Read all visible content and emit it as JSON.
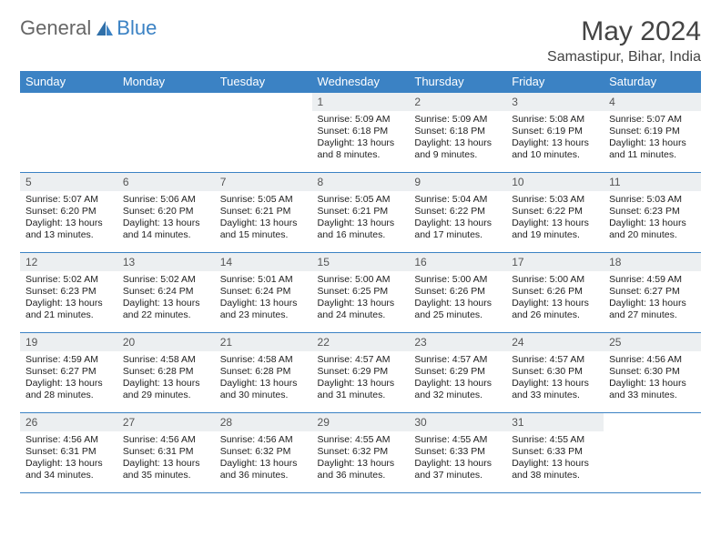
{
  "brand": {
    "part1": "General",
    "part2": "Blue"
  },
  "header": {
    "month_title": "May 2024",
    "location": "Samastipur, Bihar, India"
  },
  "colors": {
    "accent": "#3b82c4",
    "header_bg": "#3b82c4",
    "daynum_bg": "#eceff1"
  },
  "weekdays": [
    "Sunday",
    "Monday",
    "Tuesday",
    "Wednesday",
    "Thursday",
    "Friday",
    "Saturday"
  ],
  "weeks": [
    [
      null,
      null,
      null,
      {
        "n": "1",
        "sr": "5:09 AM",
        "ss": "6:18 PM",
        "dl": "13 hours and 8 minutes."
      },
      {
        "n": "2",
        "sr": "5:09 AM",
        "ss": "6:18 PM",
        "dl": "13 hours and 9 minutes."
      },
      {
        "n": "3",
        "sr": "5:08 AM",
        "ss": "6:19 PM",
        "dl": "13 hours and 10 minutes."
      },
      {
        "n": "4",
        "sr": "5:07 AM",
        "ss": "6:19 PM",
        "dl": "13 hours and 11 minutes."
      }
    ],
    [
      {
        "n": "5",
        "sr": "5:07 AM",
        "ss": "6:20 PM",
        "dl": "13 hours and 13 minutes."
      },
      {
        "n": "6",
        "sr": "5:06 AM",
        "ss": "6:20 PM",
        "dl": "13 hours and 14 minutes."
      },
      {
        "n": "7",
        "sr": "5:05 AM",
        "ss": "6:21 PM",
        "dl": "13 hours and 15 minutes."
      },
      {
        "n": "8",
        "sr": "5:05 AM",
        "ss": "6:21 PM",
        "dl": "13 hours and 16 minutes."
      },
      {
        "n": "9",
        "sr": "5:04 AM",
        "ss": "6:22 PM",
        "dl": "13 hours and 17 minutes."
      },
      {
        "n": "10",
        "sr": "5:03 AM",
        "ss": "6:22 PM",
        "dl": "13 hours and 19 minutes."
      },
      {
        "n": "11",
        "sr": "5:03 AM",
        "ss": "6:23 PM",
        "dl": "13 hours and 20 minutes."
      }
    ],
    [
      {
        "n": "12",
        "sr": "5:02 AM",
        "ss": "6:23 PM",
        "dl": "13 hours and 21 minutes."
      },
      {
        "n": "13",
        "sr": "5:02 AM",
        "ss": "6:24 PM",
        "dl": "13 hours and 22 minutes."
      },
      {
        "n": "14",
        "sr": "5:01 AM",
        "ss": "6:24 PM",
        "dl": "13 hours and 23 minutes."
      },
      {
        "n": "15",
        "sr": "5:00 AM",
        "ss": "6:25 PM",
        "dl": "13 hours and 24 minutes."
      },
      {
        "n": "16",
        "sr": "5:00 AM",
        "ss": "6:26 PM",
        "dl": "13 hours and 25 minutes."
      },
      {
        "n": "17",
        "sr": "5:00 AM",
        "ss": "6:26 PM",
        "dl": "13 hours and 26 minutes."
      },
      {
        "n": "18",
        "sr": "4:59 AM",
        "ss": "6:27 PM",
        "dl": "13 hours and 27 minutes."
      }
    ],
    [
      {
        "n": "19",
        "sr": "4:59 AM",
        "ss": "6:27 PM",
        "dl": "13 hours and 28 minutes."
      },
      {
        "n": "20",
        "sr": "4:58 AM",
        "ss": "6:28 PM",
        "dl": "13 hours and 29 minutes."
      },
      {
        "n": "21",
        "sr": "4:58 AM",
        "ss": "6:28 PM",
        "dl": "13 hours and 30 minutes."
      },
      {
        "n": "22",
        "sr": "4:57 AM",
        "ss": "6:29 PM",
        "dl": "13 hours and 31 minutes."
      },
      {
        "n": "23",
        "sr": "4:57 AM",
        "ss": "6:29 PM",
        "dl": "13 hours and 32 minutes."
      },
      {
        "n": "24",
        "sr": "4:57 AM",
        "ss": "6:30 PM",
        "dl": "13 hours and 33 minutes."
      },
      {
        "n": "25",
        "sr": "4:56 AM",
        "ss": "6:30 PM",
        "dl": "13 hours and 33 minutes."
      }
    ],
    [
      {
        "n": "26",
        "sr": "4:56 AM",
        "ss": "6:31 PM",
        "dl": "13 hours and 34 minutes."
      },
      {
        "n": "27",
        "sr": "4:56 AM",
        "ss": "6:31 PM",
        "dl": "13 hours and 35 minutes."
      },
      {
        "n": "28",
        "sr": "4:56 AM",
        "ss": "6:32 PM",
        "dl": "13 hours and 36 minutes."
      },
      {
        "n": "29",
        "sr": "4:55 AM",
        "ss": "6:32 PM",
        "dl": "13 hours and 36 minutes."
      },
      {
        "n": "30",
        "sr": "4:55 AM",
        "ss": "6:33 PM",
        "dl": "13 hours and 37 minutes."
      },
      {
        "n": "31",
        "sr": "4:55 AM",
        "ss": "6:33 PM",
        "dl": "13 hours and 38 minutes."
      },
      null
    ]
  ],
  "labels": {
    "sunrise": "Sunrise:",
    "sunset": "Sunset:",
    "daylight": "Daylight:"
  }
}
